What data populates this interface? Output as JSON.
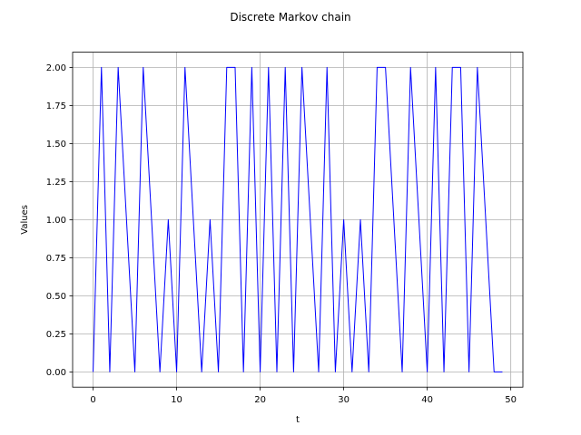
{
  "chart_data": {
    "type": "line",
    "title": "Discrete Markov chain",
    "xlabel": "t",
    "ylabel": "Values",
    "xlim": [
      -2.45,
      51.45
    ],
    "ylim": [
      -0.1,
      2.1
    ],
    "xticks": [
      0,
      10,
      20,
      30,
      40,
      50
    ],
    "xtick_labels": [
      "0",
      "10",
      "20",
      "30",
      "40",
      "50"
    ],
    "yticks": [
      0,
      0.25,
      0.5,
      0.75,
      1.0,
      1.25,
      1.5,
      1.75,
      2.0
    ],
    "ytick_labels": [
      "0.00",
      "0.25",
      "0.50",
      "0.75",
      "1.00",
      "1.25",
      "1.50",
      "1.75",
      "2.00"
    ],
    "grid": true,
    "series": [
      {
        "color": "#0000ff",
        "x": [
          0,
          1,
          2,
          3,
          4,
          5,
          6,
          7,
          8,
          9,
          10,
          11,
          12,
          13,
          14,
          15,
          16,
          17,
          18,
          19,
          20,
          21,
          22,
          23,
          24,
          25,
          26,
          27,
          28,
          29,
          30,
          31,
          32,
          33,
          34,
          35,
          36,
          37,
          38,
          39,
          40,
          41,
          42,
          43,
          44,
          45,
          46,
          47,
          48,
          49
        ],
        "values": [
          0,
          2,
          0,
          2,
          1,
          0,
          2,
          1,
          0,
          1,
          0,
          2,
          1,
          0,
          1,
          0,
          2,
          2,
          0,
          2,
          0,
          2,
          0,
          2,
          0,
          2,
          1,
          0,
          2,
          0,
          1,
          0,
          1,
          0,
          2,
          2,
          1,
          0,
          2,
          1,
          0,
          2,
          0,
          2,
          2,
          0,
          2,
          1,
          0,
          0
        ]
      }
    ]
  }
}
